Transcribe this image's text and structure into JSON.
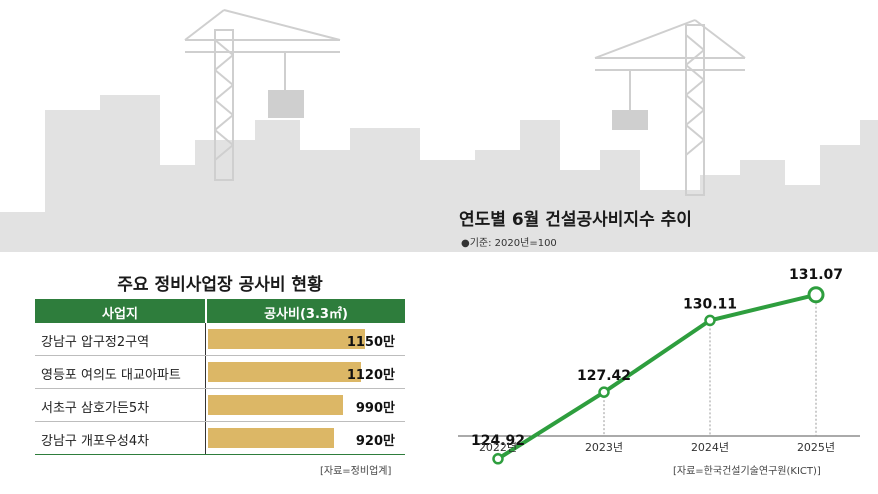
{
  "table": {
    "title": "주요 정비사업장 공사비 현황",
    "header_site": "사업지",
    "header_cost": "공사비(3.3㎡)",
    "rows": [
      {
        "site": "강남구 압구정2구역",
        "value_label": "1150만",
        "value": 1150
      },
      {
        "site": "영등포 여의도 대교아파트",
        "value_label": "1120만",
        "value": 1120
      },
      {
        "site": "서초구 삼호가든5차",
        "value_label": "990만",
        "value": 990
      },
      {
        "site": "강남구 개포우성4차",
        "value_label": "920만",
        "value": 920
      }
    ],
    "source": "[자료=정비업계]"
  },
  "chart_data": {
    "type": "line",
    "title": "연도별 6월 건설공사비지수 추이",
    "note": "●기준: 2020년=100",
    "categories": [
      "2022년",
      "2023년",
      "2024년",
      "2025년"
    ],
    "values": [
      124.92,
      127.42,
      130.11,
      131.07
    ],
    "value_labels": [
      "124.92",
      "127.42",
      "130.11",
      "131.07"
    ],
    "ylim": [
      123,
      132
    ],
    "source": "[자료=한국건설기술연구원(KICT)]",
    "line_color": "#2e9e3e"
  },
  "colors": {
    "header_green": "#2e7d3c",
    "bar_gold": "#dcb766",
    "silhouette": "#e1e1e1"
  }
}
